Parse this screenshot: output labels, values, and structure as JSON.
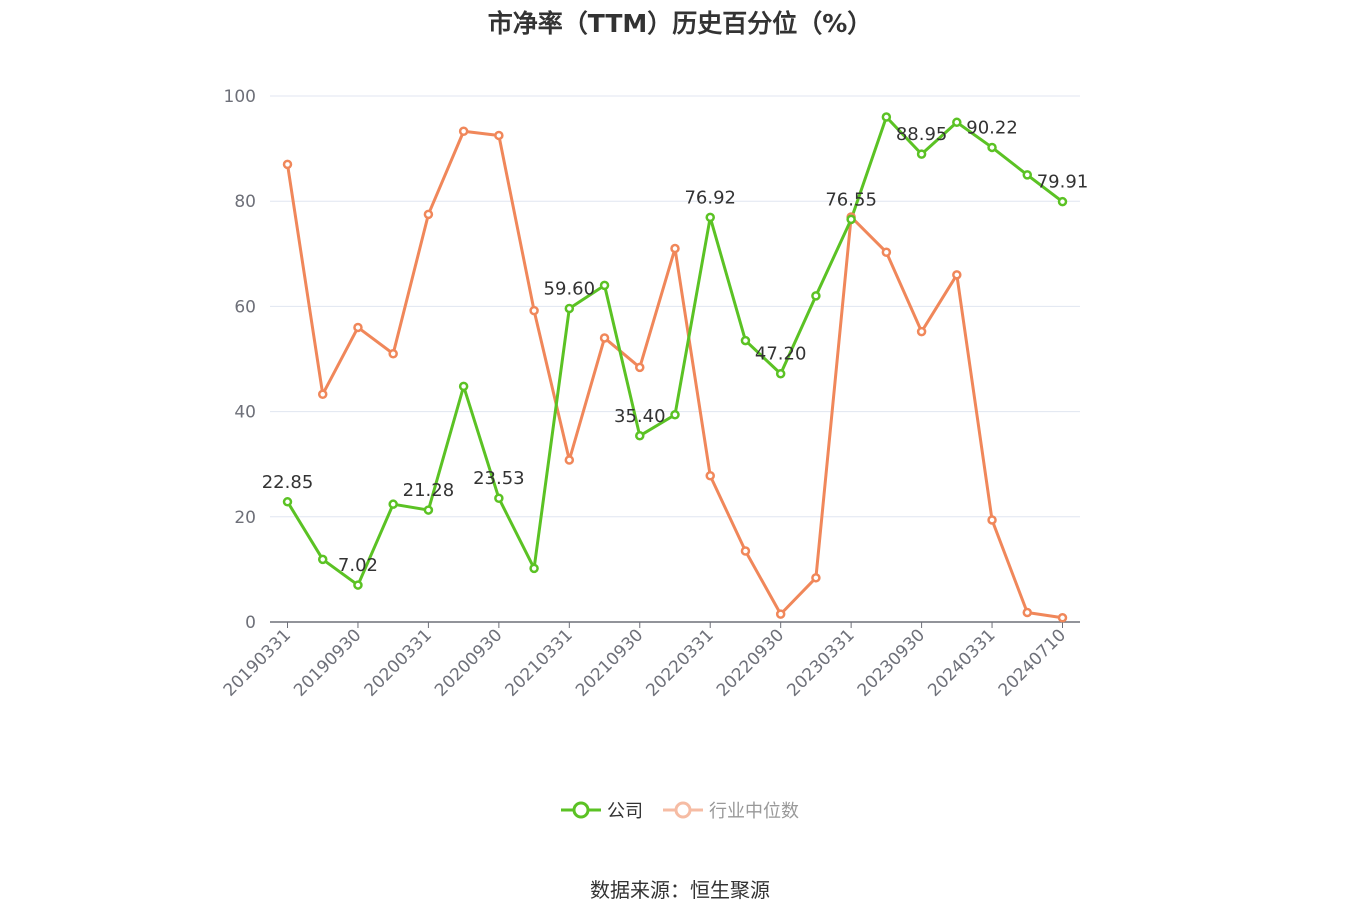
{
  "chart_data": {
    "type": "line",
    "title": "市净率（TTM）历史百分位（%）",
    "x": [
      "20190331",
      "20190630",
      "20190930",
      "20191231",
      "20200331",
      "20200630",
      "20200930",
      "20201231",
      "20210331",
      "20210630",
      "20210930",
      "20211231",
      "20220331",
      "20220630",
      "20220930",
      "20221231",
      "20230331",
      "20230630",
      "20230930",
      "20231231",
      "20240331",
      "20240630",
      "20240710"
    ],
    "x_tick_labels": [
      "20190331",
      "20190930",
      "20200331",
      "20200930",
      "20210331",
      "20210930",
      "20220331",
      "20220930",
      "20230331",
      "20230930",
      "20240331",
      "20240710"
    ],
    "ylim": [
      0,
      100
    ],
    "y_ticks": [
      0,
      20,
      40,
      60,
      80,
      100
    ],
    "grid": true,
    "legend_position": "bottom",
    "series": [
      {
        "name": "公司",
        "color": "#5bc224",
        "values": [
          22.85,
          11.9,
          7.02,
          22.4,
          21.28,
          44.8,
          23.53,
          10.2,
          59.6,
          64.0,
          35.4,
          39.4,
          76.92,
          53.5,
          47.2,
          62.0,
          76.55,
          96.0,
          88.95,
          95.0,
          90.22,
          85.0,
          79.91
        ],
        "labels": {
          "0": "22.85",
          "2": "7.02",
          "4": "21.28",
          "6": "23.53",
          "8": "59.60",
          "10": "35.40",
          "12": "76.92",
          "14": "47.20",
          "16": "76.55",
          "18": "88.95",
          "20": "90.22",
          "22": "79.91"
        }
      },
      {
        "name": "行业中位数",
        "color": "#f0875a",
        "values": [
          87.0,
          43.3,
          56.0,
          51.0,
          77.5,
          93.3,
          92.5,
          59.2,
          30.8,
          54.0,
          48.4,
          71.0,
          27.8,
          13.5,
          1.5,
          8.4,
          77.0,
          70.3,
          55.2,
          66.0,
          19.4,
          1.8,
          0.8
        ],
        "labels": {}
      }
    ],
    "source": "数据来源：恒生聚源"
  }
}
